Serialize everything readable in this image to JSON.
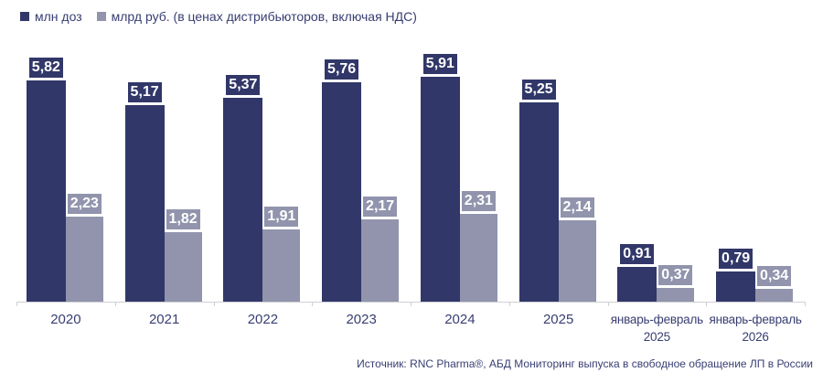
{
  "legend": {
    "items": [
      {
        "label": "млн доз",
        "color": "#313768"
      },
      {
        "label": "млрд руб. (в ценах дистрибьюторов, включая НДС)",
        "color": "#9194ac"
      }
    ]
  },
  "source": "Источник: RNC Pharma®, АБД Мониторинг выпуска в свободное обращение ЛП в России",
  "colors": {
    "series1": "#313768",
    "series2": "#9194ac",
    "axis": "#cfcfd6",
    "text": "#383e72"
  },
  "chart_data": {
    "type": "bar",
    "categories": [
      [
        "2020"
      ],
      [
        "2021"
      ],
      [
        "2022"
      ],
      [
        "2023"
      ],
      [
        "2024"
      ],
      [
        "2025"
      ],
      [
        "январь-февраль",
        "2025"
      ],
      [
        "январь-февраль",
        "2026"
      ]
    ],
    "series": [
      {
        "name": "млн доз",
        "color": "#313768",
        "values": [
          5.82,
          5.17,
          5.37,
          5.76,
          5.91,
          5.25,
          0.91,
          0.79
        ]
      },
      {
        "name": "млрд руб. (в ценах дистрибьюторов, включая НДС)",
        "color": "#9194ac",
        "values": [
          2.23,
          1.82,
          1.91,
          2.17,
          2.31,
          2.14,
          0.37,
          0.34
        ]
      }
    ],
    "value_label_decimal_separator": ",",
    "grid": false,
    "legend_position": "top-left",
    "ylim": [
      0,
      6.5
    ]
  }
}
